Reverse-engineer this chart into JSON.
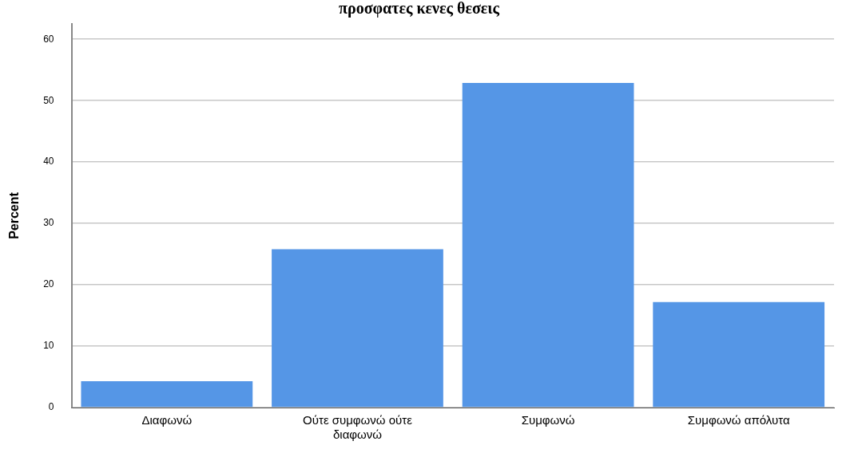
{
  "chart_data": {
    "type": "bar",
    "title": "προσφατες κενες θεσεις",
    "ylabel": "Percent",
    "categories": [
      "Διαφωνώ",
      "Ούτε συμφωνώ ούτε διαφωνώ",
      "Συμφωνώ",
      "Συμφωνώ απόλυτα"
    ],
    "values": [
      4.3,
      25.8,
      52.9,
      17.2
    ],
    "color": "#5596e6",
    "ylim": [
      0,
      62.5
    ],
    "yticks": [
      0,
      10,
      20,
      30,
      40,
      50,
      60
    ],
    "grid": "y",
    "legend": false
  }
}
